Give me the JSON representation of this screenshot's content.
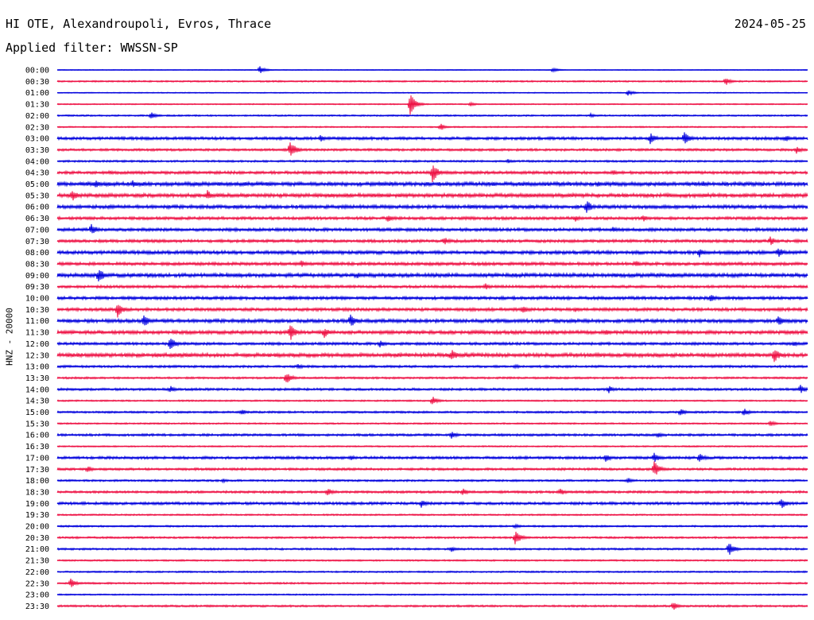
{
  "header": {
    "title": "HI OTE, Alexandroupoli, Evros, Thrace",
    "date": "2024-05-25",
    "filter": "Applied filter: WWSSN-SP"
  },
  "chart_data": {
    "type": "line",
    "title": "HI OTE, Alexandroupoli, Evros, Thrace",
    "subtitle": "Applied filter: WWSSN-SP",
    "ylabel": "HNZ - 20000",
    "xlabel": "",
    "colors": [
      "#0000dd",
      "#ee1144"
    ],
    "row_labels": [
      "00:00",
      "00:30",
      "01:00",
      "01:30",
      "02:00",
      "02:30",
      "03:00",
      "03:30",
      "04:00",
      "04:30",
      "05:00",
      "05:30",
      "06:00",
      "06:30",
      "07:00",
      "07:30",
      "08:00",
      "08:30",
      "09:00",
      "09:30",
      "10:00",
      "10:30",
      "11:00",
      "11:30",
      "12:00",
      "12:30",
      "13:00",
      "13:30",
      "14:00",
      "14:30",
      "15:00",
      "15:30",
      "16:00",
      "16:30",
      "17:00",
      "17:30",
      "18:00",
      "18:30",
      "19:00",
      "19:30",
      "20:00",
      "20:30",
      "21:00",
      "21:30",
      "22:00",
      "22:30",
      "23:00",
      "23:30"
    ],
    "rows": [
      {
        "label": "00:00",
        "noise": 0.4,
        "events": [
          {
            "pos": 0.27,
            "amp": 5
          },
          {
            "pos": 0.66,
            "amp": 3.5
          }
        ]
      },
      {
        "label": "00:30",
        "noise": 0.8,
        "events": [
          {
            "pos": 0.89,
            "amp": 6
          }
        ]
      },
      {
        "label": "01:00",
        "noise": 0.5,
        "events": [
          {
            "pos": 0.76,
            "amp": 4
          }
        ]
      },
      {
        "label": "01:30",
        "noise": 0.6,
        "events": [
          {
            "pos": 0.47,
            "amp": 14
          },
          {
            "pos": 0.55,
            "amp": 3
          }
        ]
      },
      {
        "label": "02:00",
        "noise": 0.8,
        "events": [
          {
            "pos": 0.125,
            "amp": 5
          },
          {
            "pos": 0.71,
            "amp": 3
          }
        ]
      },
      {
        "label": "02:30",
        "noise": 0.7,
        "events": [
          {
            "pos": 0.51,
            "amp": 5
          }
        ]
      },
      {
        "label": "03:00",
        "noise": 1.5,
        "events": [
          {
            "pos": 0.35,
            "amp": 5
          },
          {
            "pos": 0.79,
            "amp": 8
          },
          {
            "pos": 0.835,
            "amp": 9
          },
          {
            "pos": 0.97,
            "amp": 5
          }
        ]
      },
      {
        "label": "03:30",
        "noise": 1.2,
        "events": [
          {
            "pos": 0.31,
            "amp": 12
          },
          {
            "pos": 0.985,
            "amp": 5
          }
        ]
      },
      {
        "label": "04:00",
        "noise": 1.0,
        "events": [
          {
            "pos": 0.6,
            "amp": 3
          }
        ]
      },
      {
        "label": "04:30",
        "noise": 1.5,
        "events": [
          {
            "pos": 0.07,
            "amp": 4
          },
          {
            "pos": 0.5,
            "amp": 13
          },
          {
            "pos": 0.74,
            "amp": 4
          }
        ]
      },
      {
        "label": "05:00",
        "noise": 2.0,
        "events": [
          {
            "pos": 0.05,
            "amp": 6
          },
          {
            "pos": 0.1,
            "amp": 5
          },
          {
            "pos": 0.72,
            "amp": 4
          },
          {
            "pos": 0.86,
            "amp": 4
          }
        ]
      },
      {
        "label": "05:30",
        "noise": 2.0,
        "events": [
          {
            "pos": 0.02,
            "amp": 8
          },
          {
            "pos": 0.2,
            "amp": 7
          }
        ]
      },
      {
        "label": "06:00",
        "noise": 1.8,
        "events": [
          {
            "pos": 0.55,
            "amp": 4
          },
          {
            "pos": 0.705,
            "amp": 9
          }
        ]
      },
      {
        "label": "06:30",
        "noise": 1.5,
        "events": [
          {
            "pos": 0.44,
            "amp": 6
          },
          {
            "pos": 0.69,
            "amp": 5
          },
          {
            "pos": 0.78,
            "amp": 5
          }
        ]
      },
      {
        "label": "07:00",
        "noise": 1.6,
        "events": [
          {
            "pos": 0.045,
            "amp": 8
          },
          {
            "pos": 0.74,
            "amp": 4
          }
        ]
      },
      {
        "label": "07:30",
        "noise": 1.5,
        "events": [
          {
            "pos": 0.515,
            "amp": 6
          },
          {
            "pos": 0.95,
            "amp": 6
          }
        ]
      },
      {
        "label": "08:00",
        "noise": 1.8,
        "events": [
          {
            "pos": 0.855,
            "amp": 7
          },
          {
            "pos": 0.96,
            "amp": 8
          }
        ]
      },
      {
        "label": "08:30",
        "noise": 1.6,
        "events": [
          {
            "pos": 0.325,
            "amp": 5
          },
          {
            "pos": 0.77,
            "amp": 5
          }
        ]
      },
      {
        "label": "09:00",
        "noise": 2.0,
        "events": [
          {
            "pos": 0.055,
            "amp": 10
          },
          {
            "pos": 0.4,
            "amp": 4
          },
          {
            "pos": 0.82,
            "amp": 4
          }
        ]
      },
      {
        "label": "09:30",
        "noise": 1.4,
        "events": [
          {
            "pos": 0.57,
            "amp": 5
          }
        ]
      },
      {
        "label": "10:00",
        "noise": 1.6,
        "events": [
          {
            "pos": 0.31,
            "amp": 4
          },
          {
            "pos": 0.87,
            "amp": 6
          }
        ]
      },
      {
        "label": "10:30",
        "noise": 1.6,
        "events": [
          {
            "pos": 0.08,
            "amp": 11
          },
          {
            "pos": 0.62,
            "amp": 6
          },
          {
            "pos": 0.69,
            "amp": 4
          }
        ]
      },
      {
        "label": "11:00",
        "noise": 1.8,
        "events": [
          {
            "pos": 0.115,
            "amp": 9
          },
          {
            "pos": 0.39,
            "amp": 10
          },
          {
            "pos": 0.96,
            "amp": 9
          }
        ]
      },
      {
        "label": "11:30",
        "noise": 1.8,
        "events": [
          {
            "pos": 0.31,
            "amp": 12
          },
          {
            "pos": 0.355,
            "amp": 8
          },
          {
            "pos": 0.73,
            "amp": 5
          }
        ]
      },
      {
        "label": "12:00",
        "noise": 1.4,
        "events": [
          {
            "pos": 0.15,
            "amp": 10
          },
          {
            "pos": 0.43,
            "amp": 5
          },
          {
            "pos": 0.98,
            "amp": 4
          }
        ]
      },
      {
        "label": "12:30",
        "noise": 2.0,
        "events": [
          {
            "pos": 0.525,
            "amp": 9
          },
          {
            "pos": 0.955,
            "amp": 10
          }
        ]
      },
      {
        "label": "13:00",
        "noise": 1.2,
        "events": [
          {
            "pos": 0.32,
            "amp": 4
          },
          {
            "pos": 0.61,
            "amp": 3
          }
        ]
      },
      {
        "label": "13:30",
        "noise": 1.0,
        "events": [
          {
            "pos": 0.305,
            "amp": 8
          }
        ]
      },
      {
        "label": "14:00",
        "noise": 1.2,
        "events": [
          {
            "pos": 0.15,
            "amp": 5
          },
          {
            "pos": 0.735,
            "amp": 5
          },
          {
            "pos": 0.99,
            "amp": 6
          }
        ]
      },
      {
        "label": "14:30",
        "noise": 0.8,
        "events": [
          {
            "pos": 0.5,
            "amp": 6
          }
        ]
      },
      {
        "label": "15:00",
        "noise": 1.0,
        "events": [
          {
            "pos": 0.245,
            "amp": 4
          },
          {
            "pos": 0.83,
            "amp": 5
          },
          {
            "pos": 0.915,
            "amp": 5
          }
        ]
      },
      {
        "label": "15:30",
        "noise": 0.8,
        "events": [
          {
            "pos": 0.95,
            "amp": 4
          }
        ]
      },
      {
        "label": "16:00",
        "noise": 1.2,
        "events": [
          {
            "pos": 0.525,
            "amp": 5
          },
          {
            "pos": 0.8,
            "amp": 4
          }
        ]
      },
      {
        "label": "16:30",
        "noise": 0.7,
        "events": []
      },
      {
        "label": "17:00",
        "noise": 1.4,
        "events": [
          {
            "pos": 0.39,
            "amp": 4
          },
          {
            "pos": 0.73,
            "amp": 6
          },
          {
            "pos": 0.795,
            "amp": 7
          },
          {
            "pos": 0.855,
            "amp": 7
          }
        ]
      },
      {
        "label": "17:30",
        "noise": 1.2,
        "events": [
          {
            "pos": 0.04,
            "amp": 5
          },
          {
            "pos": 0.795,
            "amp": 11
          }
        ]
      },
      {
        "label": "18:00",
        "noise": 1.0,
        "events": [
          {
            "pos": 0.22,
            "amp": 3
          },
          {
            "pos": 0.76,
            "amp": 4
          }
        ]
      },
      {
        "label": "18:30",
        "noise": 1.2,
        "events": [
          {
            "pos": 0.36,
            "amp": 6
          },
          {
            "pos": 0.54,
            "amp": 5
          },
          {
            "pos": 0.67,
            "amp": 5
          }
        ]
      },
      {
        "label": "19:00",
        "noise": 1.4,
        "events": [
          {
            "pos": 0.485,
            "amp": 6
          },
          {
            "pos": 0.965,
            "amp": 7
          }
        ]
      },
      {
        "label": "19:30",
        "noise": 0.8,
        "events": []
      },
      {
        "label": "20:00",
        "noise": 0.9,
        "events": [
          {
            "pos": 0.61,
            "amp": 3
          }
        ]
      },
      {
        "label": "20:30",
        "noise": 1.0,
        "events": [
          {
            "pos": 0.61,
            "amp": 10
          }
        ]
      },
      {
        "label": "21:00",
        "noise": 1.0,
        "events": [
          {
            "pos": 0.525,
            "amp": 4
          },
          {
            "pos": 0.895,
            "amp": 9
          }
        ]
      },
      {
        "label": "21:30",
        "noise": 0.8,
        "events": []
      },
      {
        "label": "22:00",
        "noise": 0.8,
        "events": []
      },
      {
        "label": "22:30",
        "noise": 0.9,
        "events": [
          {
            "pos": 0.018,
            "amp": 6
          }
        ]
      },
      {
        "label": "23:00",
        "noise": 0.7,
        "events": []
      },
      {
        "label": "23:30",
        "noise": 1.0,
        "events": [
          {
            "pos": 0.82,
            "amp": 6
          }
        ]
      }
    ]
  }
}
